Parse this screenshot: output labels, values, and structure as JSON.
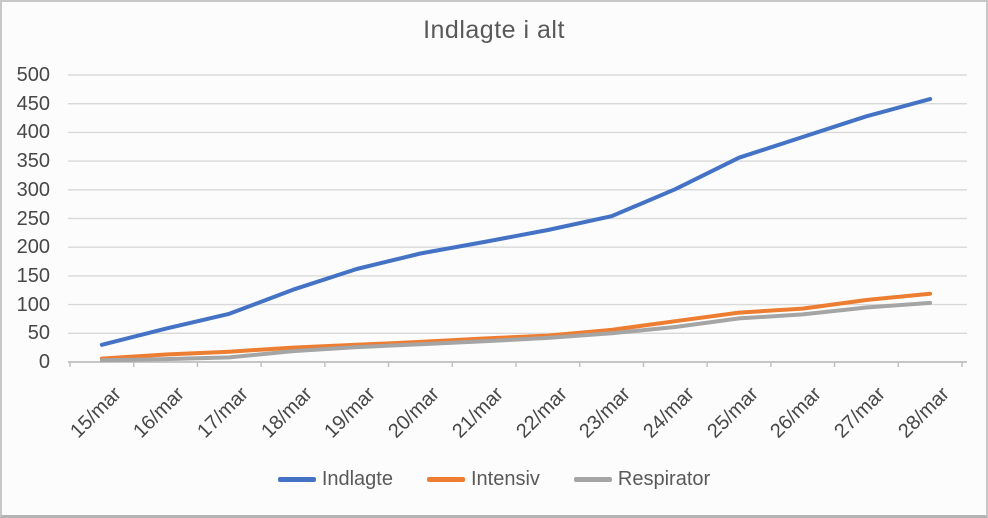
{
  "chart_data": {
    "type": "line",
    "title": "Indlagte i alt",
    "categories": [
      "15/mar",
      "16/mar",
      "17/mar",
      "18/mar",
      "19/mar",
      "20/mar",
      "21/mar",
      "22/mar",
      "23/mar",
      "24/mar",
      "25/mar",
      "26/mar",
      "27/mar",
      "28/mar"
    ],
    "series": [
      {
        "name": "Indlagte",
        "color": "#4472C4",
        "values": [
          30,
          58,
          84,
          126,
          162,
          189,
          209,
          230,
          254,
          301,
          356,
          392,
          428,
          458
        ]
      },
      {
        "name": "Intensiv",
        "color": "#ED7D31",
        "values": [
          6,
          13,
          18,
          25,
          30,
          35,
          41,
          46,
          56,
          71,
          86,
          93,
          108,
          119
        ]
      },
      {
        "name": "Respirator",
        "color": "#A5A5A5",
        "values": [
          3,
          5,
          8,
          19,
          26,
          31,
          36,
          42,
          50,
          61,
          76,
          83,
          95,
          103
        ]
      }
    ],
    "xlabel": "",
    "ylabel": "",
    "ylim": [
      0,
      500
    ],
    "yticks": [
      0,
      50,
      100,
      150,
      200,
      250,
      300,
      350,
      400,
      450,
      500
    ],
    "grid": true,
    "gridline_color": "#D9D9D9",
    "axis_line_color": "#BFBFBF",
    "title_color": "#595959",
    "axis_text_color": "#474747",
    "legend_position": "bottom"
  }
}
